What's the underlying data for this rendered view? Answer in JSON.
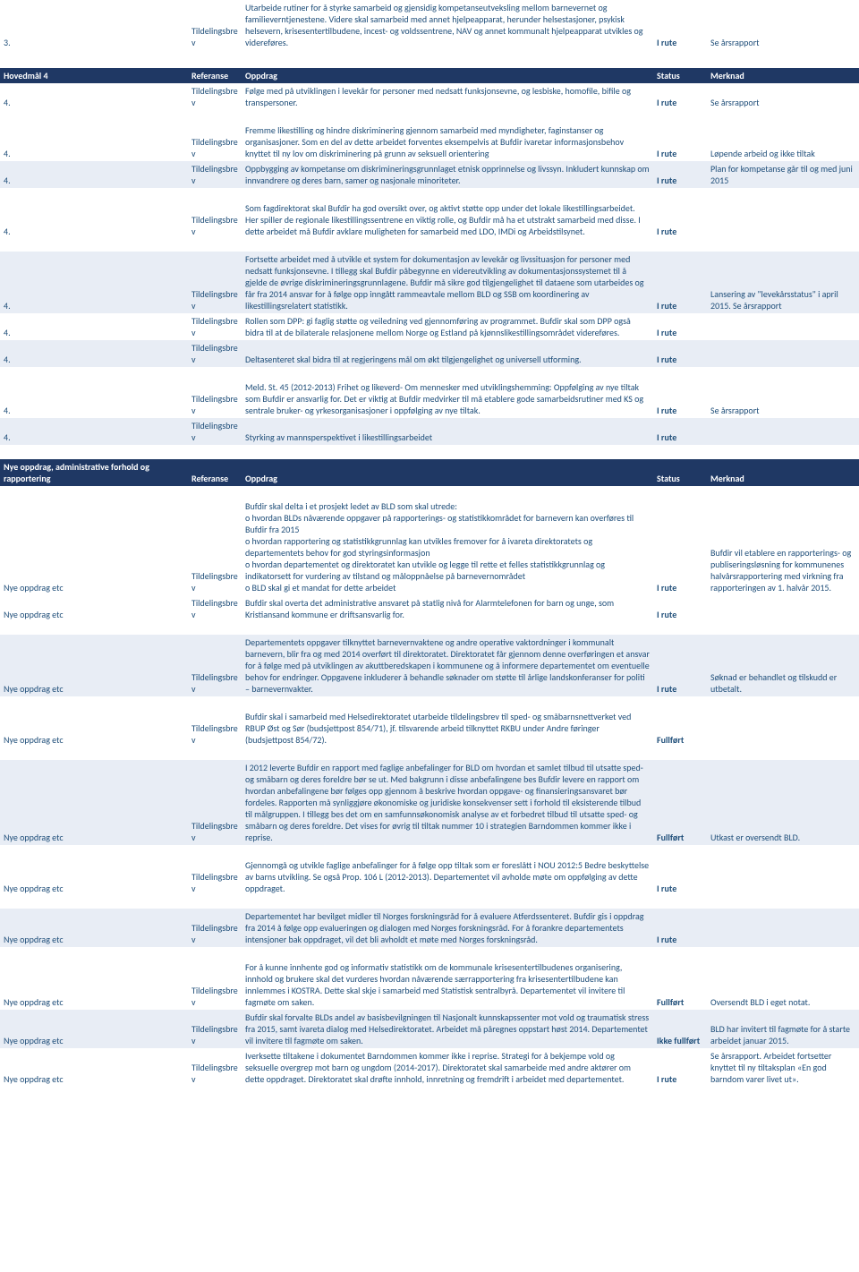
{
  "colors": {
    "text": "#1f4e79",
    "header_bg": "#1f3864",
    "header_text": "#ffffff",
    "alt_bg": "#e8edf5"
  },
  "section1": {
    "rows": [
      {
        "c0": "3.",
        "c1": "Tildelingsbrev",
        "c2": "Utarbeide rutiner for å styrke samarbeid og gjensidig kompetanseutveksling mellom barnevernet og familieverntjenestene. Videre skal samarbeid med annet hjelpeapparat, herunder helsestasjoner, psykisk helsevern, krisesentertilbudene, incest- og voldssentrene, NAV og annet kommunalt hjelpeapparat utvikles og videreføres.",
        "c3": "I rute",
        "c4": "Se årsrapport",
        "alt": false
      }
    ]
  },
  "header2": {
    "c0": "Hovedmål 4",
    "c1": "Referanse",
    "c2": "Oppdrag",
    "c3": "Status",
    "c4": "Merknad"
  },
  "section2": {
    "rows": [
      {
        "c0": "4.",
        "c1": "Tildelingsbrev",
        "c2": "Følge med på utviklingen i levekår for personer med nedsatt funksjonsevne, og lesbiske, homofile, bifile og transpersoner.",
        "c3": "I rute",
        "c4": "Se årsrapport",
        "alt": false
      },
      {
        "c0": "4.",
        "c1": "Tildelingsbrev",
        "c2": "Fremme likestilling og hindre diskriminering gjennom samarbeid med myndigheter, faginstanser og organisasjoner. Som en del av dette arbeidet forventes eksempelvis at Bufdir ivaretar informasjonsbehov knyttet til ny lov om diskriminering på grunn av seksuell orientering",
        "c3": "I rute",
        "c4": "Løpende arbeid og ikke tiltak",
        "alt": false
      },
      {
        "c0": "4.",
        "c1": "Tildelingsbrev",
        "c2": "Oppbygging av kompetanse om diskrimineringsgrunnlaget etnisk opprinnelse og livssyn. Inkludert kunnskap om innvandrere og deres barn, samer og nasjonale minoriteter.",
        "c3": "I rute",
        "c4": "Plan for kompetanse går til og med juni 2015",
        "alt": true
      },
      {
        "c0": "4.",
        "c1": "Tildelingsbrev",
        "c2": "Som fagdirektorat skal Bufdir ha god oversikt over, og aktivt støtte opp under det lokale likestillingsarbeidet. Her spiller de regionale likestillingssentrene en viktig rolle, og Bufdir må ha et utstrakt samarbeid med disse. I dette arbeidet må Bufdir avklare muligheten for samarbeid med LDO, IMDi og Arbeidstilsynet.",
        "c3": "I rute",
        "c4": "",
        "alt": false
      },
      {
        "c0": "4.",
        "c1": "Tildelingsbrev",
        "c2": "Fortsette arbeidet med å utvikle et system for dokumentasjon av levekår og livssituasjon for personer med nedsatt funksjonsevne. I tillegg skal Bufdir påbegynne en videreutvikling av dokumentasjonssystemet til å gjelde de øvrige diskrimineringsgrunnlagene. Bufdir må sikre god tilgjengelighet til dataene som utarbeides og får fra 2014 ansvar for å følge opp inngått rammeavtale mellom BLD og SSB om koordinering av likestillingsrelatert statistikk.",
        "c3": "I rute",
        "c4": "Lansering av \"levekårsstatus\" i april 2015. Se årsrapport",
        "alt": true
      },
      {
        "c0": "4.",
        "c1": "Tildelingsbrev",
        "c2": "Rollen som DPP: gi faglig støtte og veiledning ved gjennomføring av programmet. Bufdir skal som DPP også bidra til at de bilaterale relasjonene mellom Norge og Estland på kjønnslikestillingsområdet videreføres.",
        "c3": "I rute",
        "c4": "",
        "alt": false
      },
      {
        "c0": "4.",
        "c1": "Tildelingsbrev",
        "c2": "Deltasenteret skal bidra til at regjeringens mål om økt tilgjengelighet og universell utforming.",
        "c3": "I rute",
        "c4": "",
        "alt": true
      },
      {
        "c0": "4.",
        "c1": "Tildelingsbrev",
        "c2": "Meld. St. 45 (2012-2013) Frihet og likeverd- Om mennesker med utviklingshemming: Oppfølging av nye tiltak som Bufdir er ansvarlig for. Det er viktig at Bufdir medvirker til må etablere gode samarbeidsrutiner med KS og sentrale bruker- og yrkesorganisasjoner i oppfølging av nye tiltak.",
        "c3": "I rute",
        "c4": "Se årsrapport",
        "alt": false
      },
      {
        "c0": "4.",
        "c1": "Tildelingsbrev",
        "c2": "Styrking av mannsperspektivet i likestillingsarbeidet",
        "c3": "I rute",
        "c4": "",
        "alt": true
      }
    ]
  },
  "header3": {
    "c0": "Nye oppdrag, administrative forhold og rapportering",
    "c1": "Referanse",
    "c2": "Oppdrag",
    "c3": "Status",
    "c4": "Merknad"
  },
  "section3": {
    "rows": [
      {
        "c0": "Nye oppdrag etc",
        "c1": "Tildelingsbrev",
        "c2": "Bufdir skal delta i et prosjekt ledet av BLD som skal utrede:\no hvordan BLDs nåværende oppgaver på rapporterings- og statistikkområdet for barnevern kan overføres til Bufdir fra 2015\no hvordan rapportering og statistikkgrunnlag kan utvikles fremover for å ivareta direktoratets og departementets behov for god styringsinformasjon\no hvordan departementet og direktoratet kan utvikle og legge til rette et felles statistikkgrunnlag og indikatorsett for vurdering av tilstand og måloppnåelse på barnevernområdet\no BLD skal gi et mandat for dette arbeidet",
        "c3": "I rute",
        "c4": "Bufdir vil etablere en rapporterings- og publiseringsløsning for kommunenes halvårsrapportering med virkning fra rapporteringen av 1. halvår 2015.",
        "alt": false
      },
      {
        "c0": "Nye oppdrag etc",
        "c1": "Tildelingsbrev",
        "c2": "Bufdir skal overta det administrative ansvaret på statlig nivå for Alarmtelefonen for barn og unge, som Kristiansand kommune er driftsansvarlig for.",
        "c3": "I rute",
        "c4": "",
        "alt": false
      },
      {
        "c0": "Nye oppdrag etc",
        "c1": "Tildelingsbrev",
        "c2": "Departementets oppgaver tilknyttet barnevernvaktene og andre operative vaktordninger i kommunalt barnevern, blir fra og med 2014 overført til direktoratet. Direktoratet får gjennom denne overføringen et ansvar for å følge med på utviklingen av akuttberedskapen i kommunene og å informere departementet om eventuelle behov for endringer. Oppgavene inkluderer å behandle søknader om støtte til årlige landskonferanser for politi – barnevernvakter.",
        "c3": "I rute",
        "c4": "Søknad er behandlet og tilskudd er utbetalt.",
        "alt": true
      },
      {
        "c0": "Nye oppdrag etc",
        "c1": "Tildelingsbrev",
        "c2": "Bufdir skal i samarbeid med Helsedirektoratet utarbeide tildelingsbrev til sped- og småbarnsnettverket ved RBUP Øst og Sør (budsjettpost 854/71), jf. tilsvarende arbeid tilknyttet RKBU under Andre føringer (budsjettpost 854/72).",
        "c3": "Fullført",
        "c4": "",
        "alt": false
      },
      {
        "c0": "Nye oppdrag etc",
        "c1": "Tildelingsbrev",
        "c2": "I 2012 leverte Bufdir en rapport med faglige anbefalinger for BLD om hvordan et samlet tilbud til utsatte sped- og småbarn og deres foreldre bør se ut. Med bakgrunn i disse anbefalingene bes Bufdir levere en rapport om hvordan anbefalingene bør følges opp gjennom å beskrive hvordan oppgave- og finansieringsansvaret bør fordeles. Rapporten må synliggjøre økonomiske og juridiske konsekvenser sett i forhold til eksisterende tilbud til målgruppen. I tillegg bes det om en samfunnsøkonomisk analyse av et forbedret tilbud til utsatte sped- og småbarn og deres foreldre. Det vises for øvrig til tiltak nummer 10 i strategien Barndommen kommer ikke i reprise.",
        "c3": "Fullført",
        "c4": "Utkast er oversendt BLD.",
        "alt": true
      },
      {
        "c0": "Nye oppdrag etc",
        "c1": "Tildelingsbrev",
        "c2": "Gjennomgå og utvikle faglige anbefalinger for å følge opp tiltak som er foreslått i NOU 2012:5 Bedre beskyttelse av barns utvikling. Se også Prop. 106 L (2012-2013). Departementet vil avholde møte om oppfølging av dette oppdraget.",
        "c3": "I rute",
        "c4": "",
        "alt": false
      },
      {
        "c0": "Nye oppdrag etc",
        "c1": "Tildelingsbrev",
        "c2": "Departementet har bevilget midler til Norges forskningsråd for å evaluere Atferdssenteret. Bufdir gis i oppdrag fra 2014 å følge opp evalueringen og dialogen med Norges forskningsråd. For å forankre departementets intensjoner bak oppdraget, vil det bli avholdt et møte med Norges forskningsråd.",
        "c3": "I rute",
        "c4": "",
        "alt": true
      },
      {
        "c0": "Nye oppdrag etc",
        "c1": "Tildelingsbrev",
        "c2": "For å kunne innhente god og informativ statistikk om de kommunale krisesentertilbudenes organisering, innhold og brukere skal det vurderes hvordan nåværende særrapportering fra krisesentertilbudene kan innlemmes i KOSTRA. Dette skal skje i samarbeid med Statistisk sentralbyrå. Departementet vil invitere til fagmøte om saken.",
        "c3": "Fullført",
        "c4": "Oversendt BLD i eget notat.",
        "alt": false
      },
      {
        "c0": "Nye oppdrag etc",
        "c1": "Tildelingsbrev",
        "c2": "Bufdir skal forvalte BLDs andel av basisbevilgningen til Nasjonalt kunnskapssenter mot vold og traumatisk stress fra 2015, samt ivareta dialog med Helsedirektoratet. Arbeidet må påregnes oppstart høst 2014. Departementet vil invitere til fagmøte om saken.",
        "c3": "Ikke fullført",
        "c4": "BLD har invitert til fagmøte for å starte arbeidet januar 2015.",
        "alt": true
      },
      {
        "c0": "Nye oppdrag etc",
        "c1": "Tildelingsbrev",
        "c2": "Iverksette tiltakene i dokumentet Barndommen kommer ikke i reprise. Strategi for å bekjempe vold og seksuelle overgrep mot barn og ungdom (2014-2017). Direktoratet skal samarbeide med andre aktører om dette oppdraget. Direktoratet skal drøfte innhold, innretning og fremdrift i arbeidet med departementet.",
        "c3": "I rute",
        "c4": "Se årsrapport. Arbeidet fortsetter knyttet til ny tiltaksplan «En god barndom varer livet ut».",
        "alt": false
      }
    ]
  }
}
